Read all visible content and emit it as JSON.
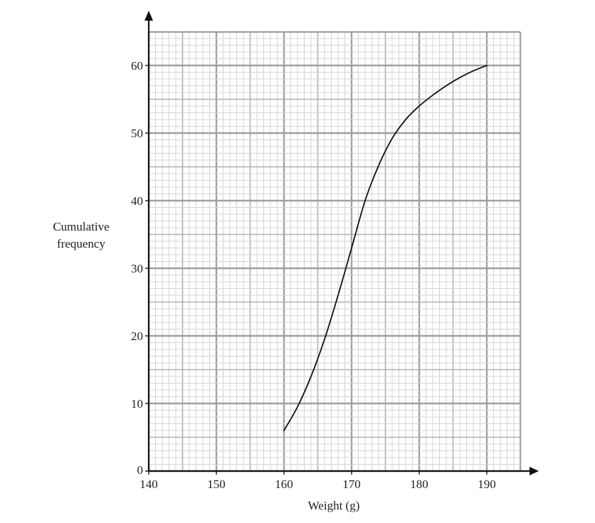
{
  "chart_data": {
    "type": "line",
    "title": "",
    "xlabel": "Weight (g)",
    "ylabel_lines": [
      "Cumulative",
      "frequency"
    ],
    "xlim": [
      140,
      195.5
    ],
    "ylim": [
      0,
      65
    ],
    "x_ticks": [
      140,
      150,
      160,
      170,
      180,
      190
    ],
    "y_ticks": [
      0,
      10,
      20,
      30,
      40,
      50,
      60
    ],
    "grid": {
      "major_x": 10,
      "mid_x": 5,
      "minor_x": 1,
      "major_y": 10,
      "mid_y": 5,
      "minor_y": 1
    },
    "series": [
      {
        "x": [
          160,
          162,
          164,
          166,
          168,
          170,
          172,
          174,
          176,
          178,
          180,
          182,
          184,
          186,
          188,
          190
        ],
        "y": [
          6,
          9.5,
          14,
          19.5,
          26,
          33,
          40,
          45.2,
          49.2,
          52,
          54,
          55.6,
          57,
          58.2,
          59.2,
          60
        ]
      }
    ],
    "colors": {
      "grid_minor": "#d4d4d4",
      "grid_mid": "#b0b0b0",
      "grid_major": "#a0a0a0",
      "axis": "#111111",
      "curve": "#111111"
    }
  }
}
